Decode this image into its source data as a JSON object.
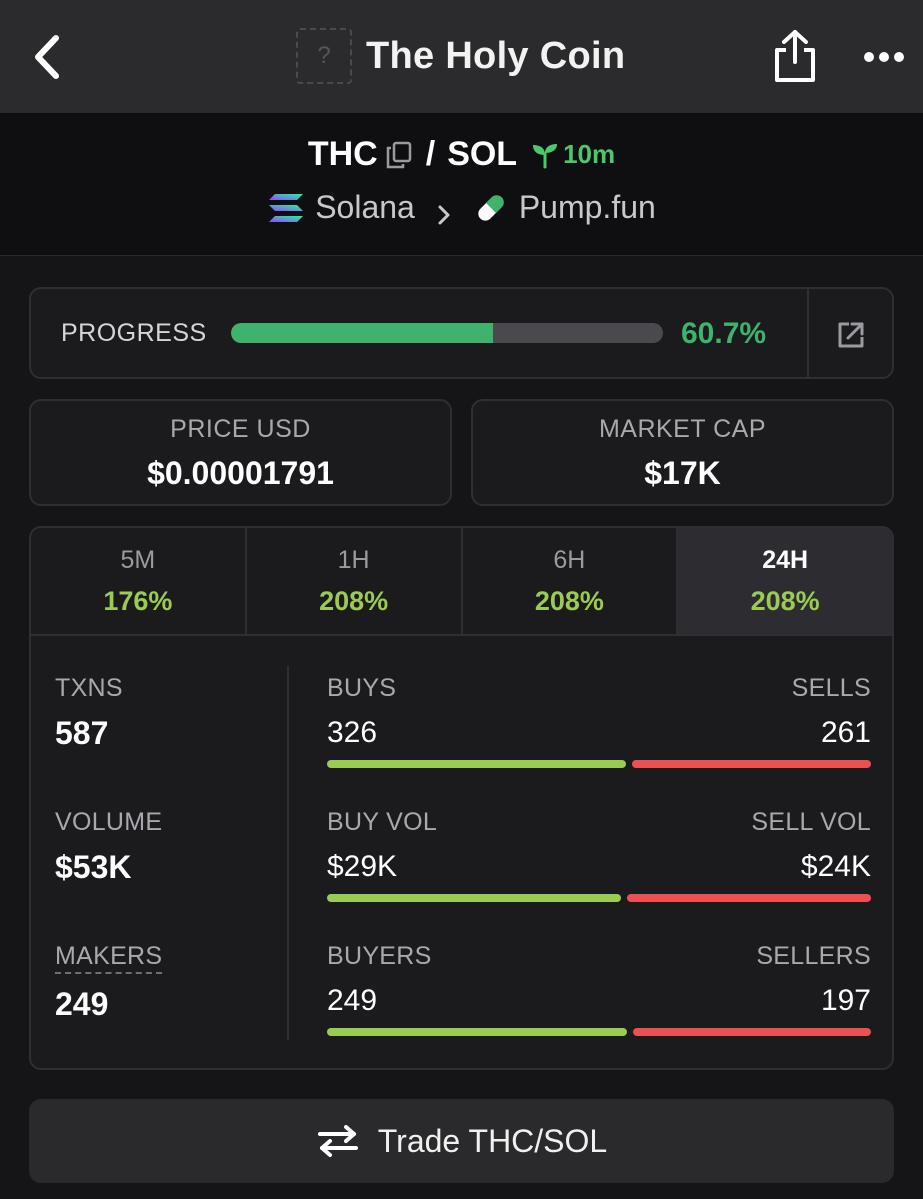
{
  "header": {
    "title": "The Holy Coin",
    "token_image_placeholder": "?"
  },
  "pair": {
    "base": "THC",
    "separator": "/",
    "quote": "SOL",
    "age": "10m",
    "chain": "Solana",
    "dex": "Pump.fun"
  },
  "progress": {
    "label": "PROGRESS",
    "value_text": "60.7%",
    "fraction": 0.607,
    "color": "#3fb36b"
  },
  "price_usd": {
    "label": "PRICE USD",
    "value": "$0.00001791"
  },
  "market_cap": {
    "label": "MARKET CAP",
    "value": "$17K"
  },
  "timeframes": [
    {
      "label": "5M",
      "change": "176%",
      "active": false
    },
    {
      "label": "1H",
      "change": "208%",
      "active": false
    },
    {
      "label": "6H",
      "change": "208%",
      "active": false
    },
    {
      "label": "24H",
      "change": "208%",
      "active": true
    }
  ],
  "metrics": {
    "txns": {
      "label": "TXNS",
      "value": "587"
    },
    "volume": {
      "label": "VOLUME",
      "value": "$53K"
    },
    "makers": {
      "label": "MAKERS",
      "value": "249"
    }
  },
  "splits": {
    "txns": {
      "left_label": "BUYS",
      "left_value": "326",
      "right_label": "SELLS",
      "right_value": "261",
      "buy": 326,
      "sell": 261
    },
    "volume": {
      "left_label": "BUY VOL",
      "left_value": "$29K",
      "right_label": "SELL VOL",
      "right_value": "$24K",
      "buy": 29,
      "sell": 24
    },
    "makers": {
      "left_label": "BUYERS",
      "left_value": "249",
      "right_label": "SELLERS",
      "right_value": "197",
      "buy": 249,
      "sell": 197
    }
  },
  "colors": {
    "positive": "#9acb52",
    "buy_bar": "#9acb52",
    "sell_bar": "#eb5151",
    "age": "#4cc86b"
  },
  "trade_button": {
    "label": "Trade THC/SOL"
  },
  "icons": [
    "back-arrow-icon",
    "share-icon",
    "more-icon",
    "copy-icon",
    "sprout-icon",
    "solana-icon",
    "chevron-right-icon",
    "pill-icon",
    "external-link-icon",
    "swap-icon"
  ]
}
